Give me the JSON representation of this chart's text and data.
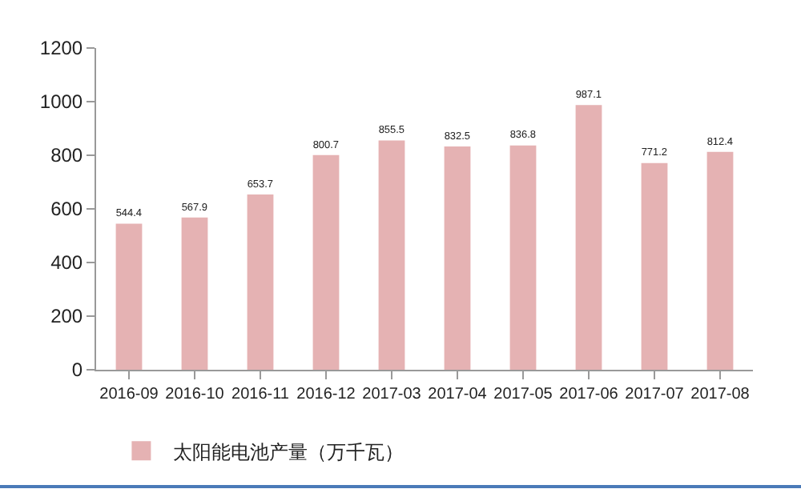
{
  "chart_data": {
    "type": "bar",
    "categories": [
      "2016-09",
      "2016-10",
      "2016-11",
      "2016-12",
      "2017-03",
      "2017-04",
      "2017-05",
      "2017-06",
      "2017-07",
      "2017-08"
    ],
    "series": [
      {
        "name": "太阳能电池产量（万千瓦）",
        "color": "#e5b2b3",
        "values": [
          544.4,
          567.9,
          653.7,
          800.7,
          855.5,
          832.5,
          836.8,
          987.1,
          771.2,
          812.4
        ]
      }
    ],
    "ylim": [
      0,
      1200
    ],
    "yticks": [
      0,
      200,
      400,
      600,
      800,
      1000,
      1200
    ],
    "data_labels": true,
    "grid": false,
    "legend": "bottom left"
  }
}
